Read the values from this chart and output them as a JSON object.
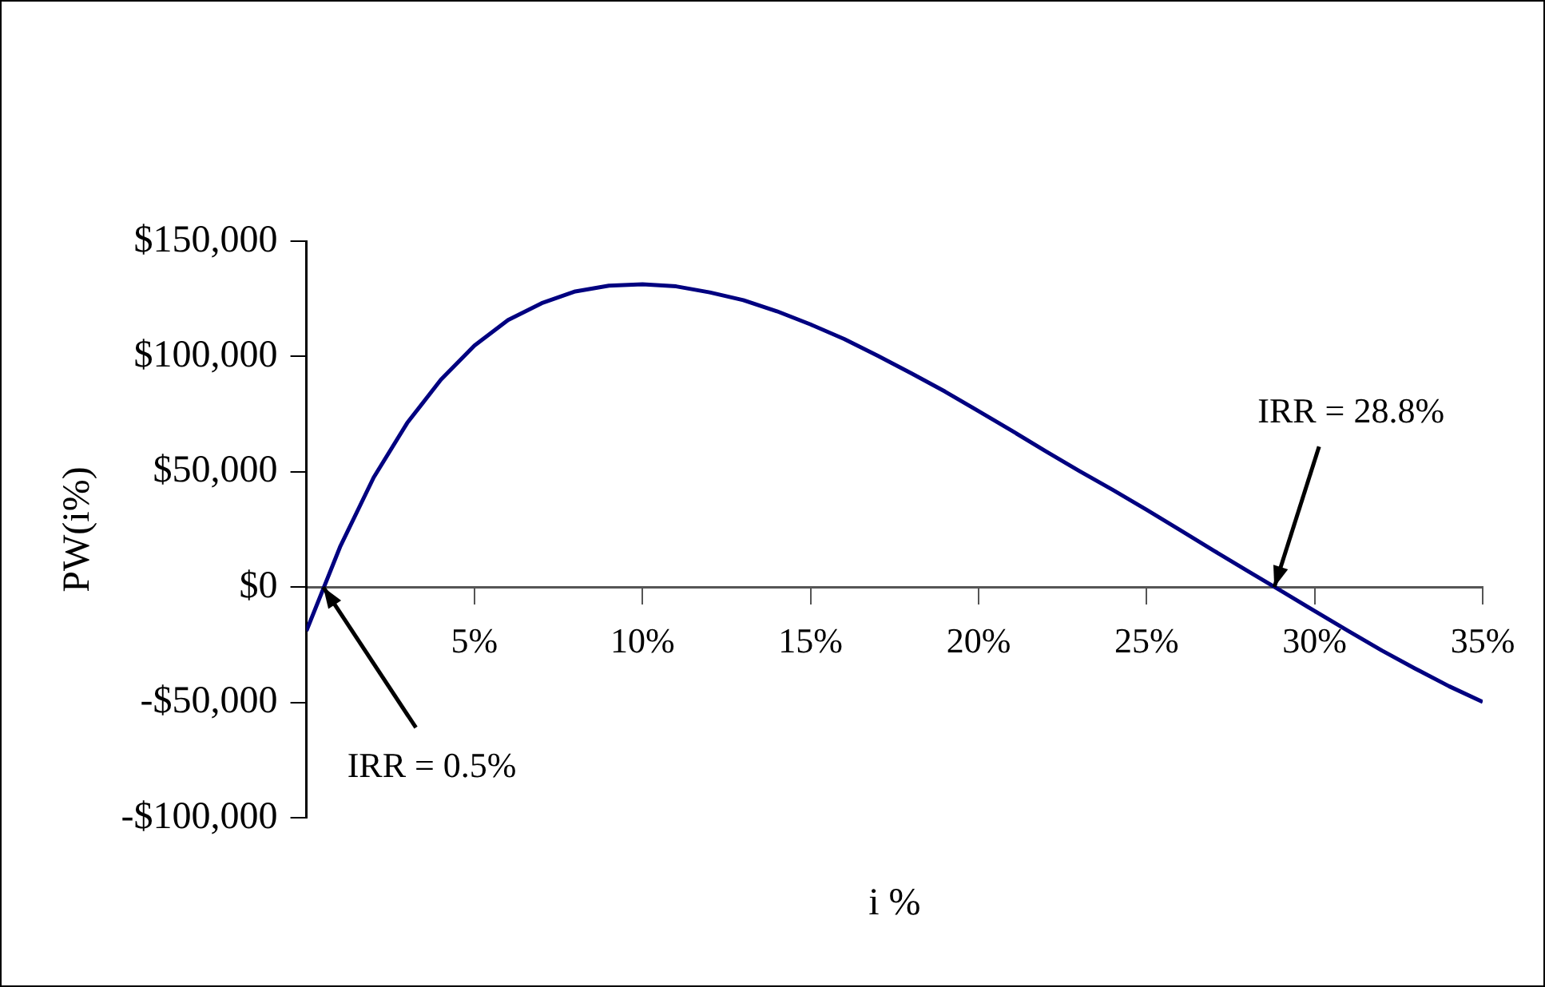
{
  "chart_data": {
    "type": "line",
    "xlabel": "i %",
    "ylabel": "PW(i%)",
    "x": [
      0,
      1,
      2,
      3,
      4,
      5,
      6,
      7,
      8,
      9,
      10,
      11,
      12,
      13,
      14,
      15,
      16,
      17,
      18,
      19,
      20,
      21,
      22,
      23,
      24,
      25,
      26,
      27,
      28,
      29,
      30,
      31,
      32,
      33,
      34,
      35
    ],
    "series": [
      {
        "color": "#000080",
        "values": [
          -19000,
          17400,
          47500,
          71200,
          89900,
          104700,
          115800,
          123100,
          128200,
          130700,
          131300,
          130400,
          127800,
          124400,
          119600,
          113900,
          107600,
          100300,
          92700,
          84800,
          76300,
          67700,
          58900,
          50300,
          42100,
          33500,
          24700,
          15800,
          7000,
          -1600,
          -10400,
          -19000,
          -27500,
          -35400,
          -43000,
          -49800
        ]
      }
    ],
    "xlim": [
      0,
      35
    ],
    "xticks": [
      {
        "value": 5,
        "label": "5%"
      },
      {
        "value": 10,
        "label": "10%"
      },
      {
        "value": 15,
        "label": "15%"
      },
      {
        "value": 20,
        "label": "20%"
      },
      {
        "value": 25,
        "label": "25%"
      },
      {
        "value": 30,
        "label": "30%"
      },
      {
        "value": 35,
        "label": "35%"
      }
    ],
    "ylim": [
      -100000,
      150000
    ],
    "yticks": [
      {
        "value": -100000,
        "label": "-$100,000"
      },
      {
        "value": -50000,
        "label": "-$50,000"
      },
      {
        "value": 0,
        "label": "$0"
      },
      {
        "value": 50000,
        "label": "$50,000"
      },
      {
        "value": 100000,
        "label": "$100,000"
      },
      {
        "value": 150000,
        "label": "$150,000"
      }
    ],
    "annotations": [
      {
        "text": "IRR = 0.5%",
        "x": 0.5,
        "y": 0
      },
      {
        "text": "IRR = 28.8%",
        "x": 28.8,
        "y": 0
      }
    ],
    "grid": false,
    "legend": false,
    "marker": "none",
    "line_style": "solid"
  }
}
